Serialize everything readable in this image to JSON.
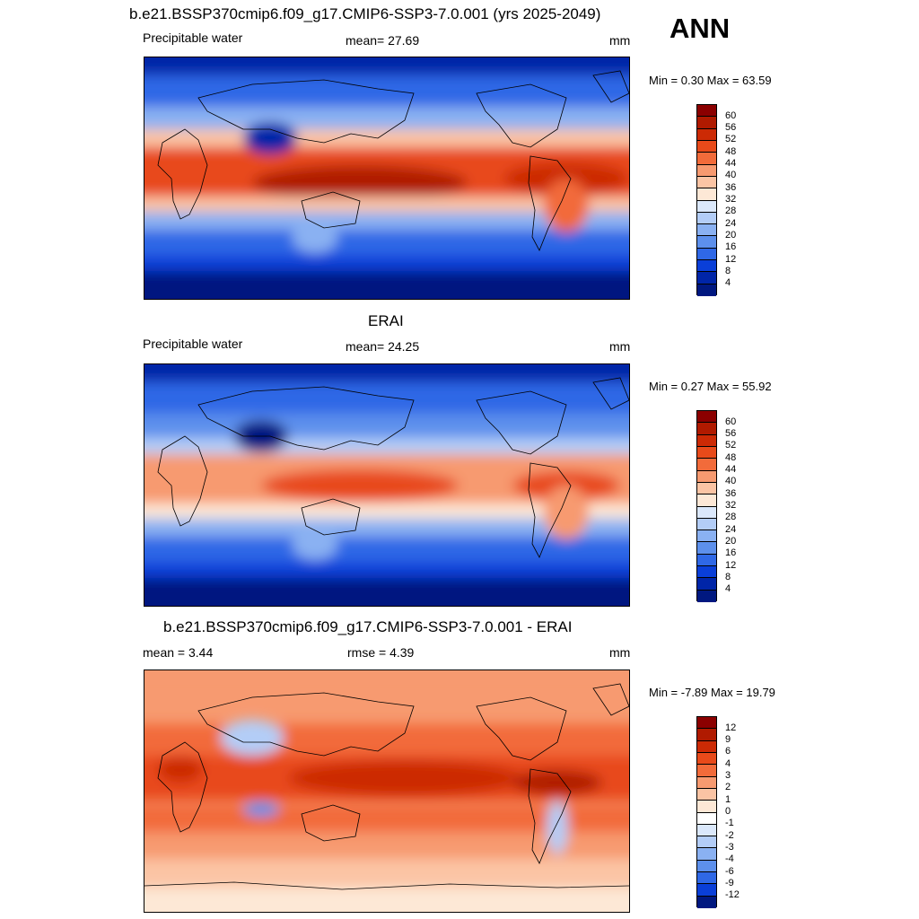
{
  "header": {
    "title": "b.e21.BSSP370cmip6.f09_g17.CMIP6-SSP3-7.0.001 (yrs 2025-2049)",
    "season": "ANN"
  },
  "panels": [
    {
      "id": "model",
      "subtitle": "",
      "left_label": "Precipitable water",
      "center_label": "mean=  27.69",
      "units": "mm",
      "minmax": "Min =   0.30 Max =  63.59",
      "colorbar_ticks": [
        "60",
        "56",
        "52",
        "48",
        "44",
        "40",
        "36",
        "32",
        "28",
        "24",
        "20",
        "16",
        "12",
        "8",
        "4"
      ],
      "colorbar_colors": [
        "#8b0000",
        "#b01a00",
        "#cc2a05",
        "#e84a1a",
        "#f26b3a",
        "#f79a70",
        "#fbc4a4",
        "#fde8d6",
        "#dbe8fb",
        "#b3cdf7",
        "#8ab1f2",
        "#5d90ec",
        "#2f68e6",
        "#0a3fd8",
        "#0025a8",
        "#001880"
      ]
    },
    {
      "id": "obs",
      "subtitle": "ERAI",
      "left_label": "Precipitable water",
      "center_label": "mean=  24.25",
      "units": "mm",
      "minmax": "Min =   0.27 Max =  55.92",
      "colorbar_ticks": [
        "60",
        "56",
        "52",
        "48",
        "44",
        "40",
        "36",
        "32",
        "28",
        "24",
        "20",
        "16",
        "12",
        "8",
        "4"
      ],
      "colorbar_colors": [
        "#8b0000",
        "#b01a00",
        "#cc2a05",
        "#e84a1a",
        "#f26b3a",
        "#f79a70",
        "#fbc4a4",
        "#fde8d6",
        "#dbe8fb",
        "#b3cdf7",
        "#8ab1f2",
        "#5d90ec",
        "#2f68e6",
        "#0a3fd8",
        "#0025a8",
        "#001880"
      ]
    },
    {
      "id": "diff",
      "subtitle": "b.e21.BSSP370cmip6.f09_g17.CMIP6-SSP3-7.0.001 - ERAI",
      "left_label": "mean =   3.44",
      "center_label": "rmse =   4.39",
      "units": "mm",
      "minmax": "Min =  -7.89 Max =  19.79",
      "colorbar_ticks": [
        "12",
        "9",
        "6",
        "4",
        "3",
        "2",
        "1",
        "0",
        "-1",
        "-2",
        "-3",
        "-4",
        "-6",
        "-9",
        "-12"
      ],
      "colorbar_colors": [
        "#8b0000",
        "#b01a00",
        "#cc2a05",
        "#e84a1a",
        "#f26b3a",
        "#f79a70",
        "#fbc4a4",
        "#fde8d6",
        "#ffffff",
        "#dbe8fb",
        "#b3cdf7",
        "#8ab1f2",
        "#5d90ec",
        "#2f68e6",
        "#0a3fd8",
        "#001880"
      ]
    }
  ]
}
